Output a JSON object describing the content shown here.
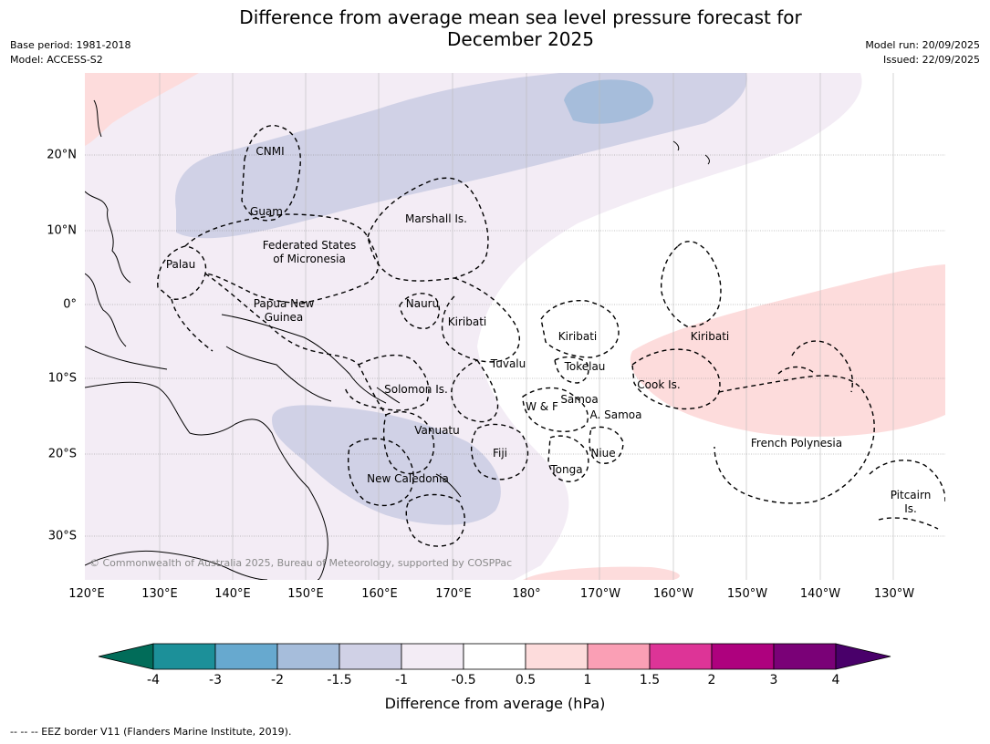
{
  "title": {
    "line1": "Difference from average mean sea level pressure forecast for",
    "line2": "December 2025"
  },
  "meta": {
    "base_period": "Base period: 1981-2018",
    "model": "Model: ACCESS-S2",
    "model_run": "Model run: 20/09/2025",
    "issued": "Issued: 22/09/2025"
  },
  "map": {
    "lon_labels": [
      "120°E",
      "130°E",
      "140°E",
      "150°E",
      "160°E",
      "170°E",
      "180°",
      "170°W",
      "160°W",
      "150°W",
      "140°W",
      "130°W"
    ],
    "lat_labels": [
      "20°N",
      "10°N",
      "0°",
      "10°S",
      "20°S",
      "30°S"
    ],
    "places": [
      {
        "name": "CNMI"
      },
      {
        "name": "Guam"
      },
      {
        "name": "Marshall Is."
      },
      {
        "name": "Federated States"
      },
      {
        "name": "of Micronesia"
      },
      {
        "name": "Palau"
      },
      {
        "name": "Papua New"
      },
      {
        "name": "Guinea"
      },
      {
        "name": "Nauru"
      },
      {
        "name": "Kiribati"
      },
      {
        "name": "Kiribati"
      },
      {
        "name": "Kiribati"
      },
      {
        "name": "Tuvalu"
      },
      {
        "name": "Tokelau"
      },
      {
        "name": "Solomon Is."
      },
      {
        "name": "Cook Is."
      },
      {
        "name": "W & F"
      },
      {
        "name": "Samoa"
      },
      {
        "name": "A. Samoa"
      },
      {
        "name": "Vanuatu"
      },
      {
        "name": "Fiji"
      },
      {
        "name": "Niue"
      },
      {
        "name": "French Polynesia"
      },
      {
        "name": "Tonga"
      },
      {
        "name": "New Caledonia"
      },
      {
        "name": "Pitcairn"
      },
      {
        "name": "Is."
      }
    ],
    "copyright": "© Commonwealth of Australia 2025, Bureau of Meteorology, supported by COSPPac",
    "colors": {
      "light_pink": "#fddcdc",
      "light_lavender": "#f3ecf5",
      "lavender": "#d0d1e6",
      "steel_blue": "#a6bddb"
    }
  },
  "colorbar": {
    "ticks": [
      "-4",
      "-3",
      "-2",
      "-1.5",
      "-1",
      "-0.5",
      "0.5",
      "1",
      "1.5",
      "2",
      "3",
      "4"
    ],
    "colors": [
      "#016c59",
      "#1c9099",
      "#67a9cf",
      "#a6bddb",
      "#d0d1e6",
      "#f3ecf5",
      "#ffffff",
      "#fddcdc",
      "#fa9fb5",
      "#dd3497",
      "#ae017e",
      "#7a0177",
      "#49006a"
    ],
    "label": "Difference from average (hPa)"
  },
  "footnote": "--  --  -- EEZ border V11 (Flanders Marine Institute, 2019)."
}
